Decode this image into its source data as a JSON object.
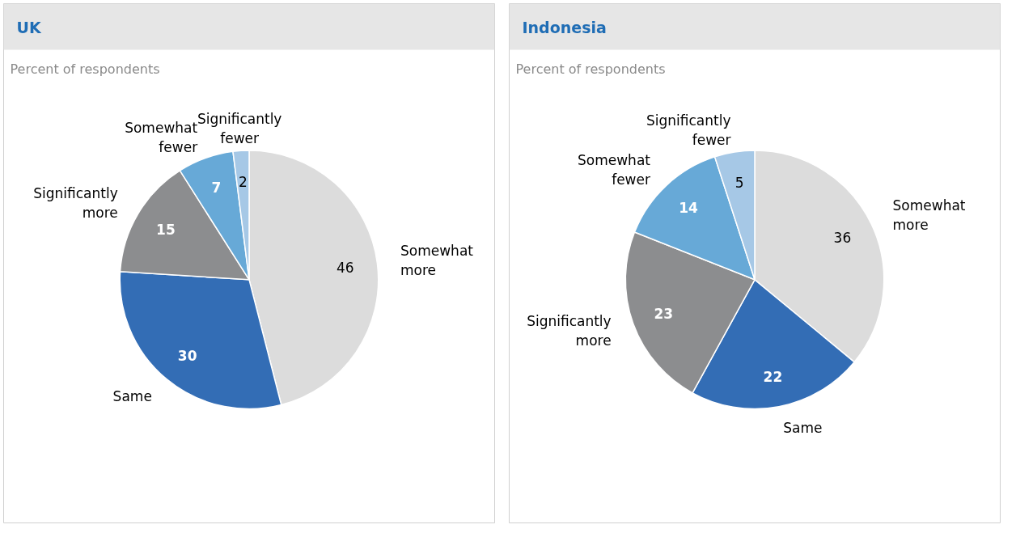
{
  "chart_data": [
    {
      "type": "pie",
      "title": "UK",
      "subtitle": "Percent of respondents",
      "categories": [
        "Somewhat more",
        "Same",
        "Significantly more",
        "Somewhat fewer",
        "Significantly fewer"
      ],
      "values": [
        46,
        30,
        15,
        7,
        2
      ],
      "colors": [
        "#dcdcdc",
        "#336db5",
        "#8c8d8f",
        "#67a9d7",
        "#a6c8e6"
      ],
      "data_labels": true
    },
    {
      "type": "pie",
      "title": "Indonesia",
      "subtitle": "Percent of respondents",
      "categories": [
        "Somewhat more",
        "Same",
        "Significantly more",
        "Somewhat fewer",
        "Significantly fewer"
      ],
      "values": [
        36,
        22,
        23,
        14,
        5
      ],
      "colors": [
        "#dcdcdc",
        "#336db5",
        "#8c8d8f",
        "#67a9d7",
        "#a6c8e6"
      ],
      "data_labels": true
    }
  ]
}
